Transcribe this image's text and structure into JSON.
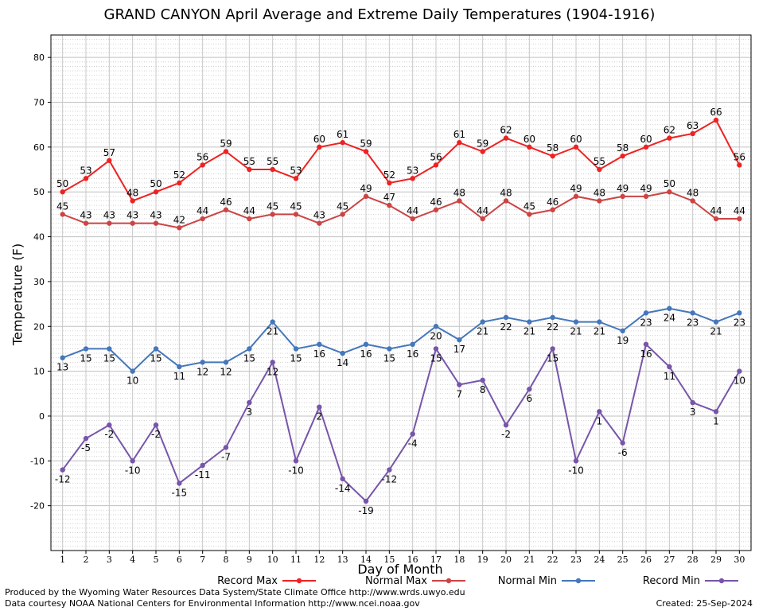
{
  "chart_data": {
    "type": "line",
    "title": "GRAND CANYON April Average and Extreme Daily Temperatures (1904-1916)",
    "xlabel": "Day of Month",
    "ylabel": "Temperature (F)",
    "ylim": [
      -30,
      85
    ],
    "yticks": [
      -20,
      -10,
      0,
      10,
      20,
      30,
      40,
      50,
      60,
      70,
      80
    ],
    "x": [
      1,
      2,
      3,
      4,
      5,
      6,
      7,
      8,
      9,
      10,
      11,
      12,
      13,
      14,
      15,
      16,
      17,
      18,
      19,
      20,
      21,
      22,
      23,
      24,
      25,
      26,
      27,
      28,
      29,
      30
    ],
    "grid": true,
    "legend_position": "bottom",
    "series": [
      {
        "name": "Record Max",
        "color": "#ee2222",
        "values": [
          50,
          53,
          57,
          48,
          50,
          52,
          56,
          59,
          55,
          55,
          53,
          60,
          61,
          59,
          52,
          53,
          56,
          61,
          59,
          62,
          60,
          58,
          60,
          55,
          58,
          60,
          62,
          63,
          66,
          56
        ]
      },
      {
        "name": "Normal Max",
        "color": "#cc4444",
        "values": [
          45,
          43,
          43,
          43,
          43,
          42,
          44,
          46,
          44,
          45,
          45,
          43,
          45,
          49,
          47,
          44,
          46,
          48,
          44,
          48,
          45,
          46,
          49,
          48,
          49,
          49,
          50,
          48,
          44,
          44
        ]
      },
      {
        "name": "Normal Min",
        "color": "#4477bb",
        "values": [
          13,
          15,
          15,
          10,
          15,
          11,
          12,
          12,
          15,
          21,
          15,
          16,
          14,
          16,
          15,
          16,
          20,
          17,
          21,
          22,
          21,
          22,
          21,
          21,
          19,
          23,
          24,
          23,
          21,
          23
        ]
      },
      {
        "name": "Record Min",
        "color": "#7755aa",
        "values": [
          -12,
          -5,
          -2,
          -10,
          -2,
          -15,
          -11,
          -7,
          3,
          12,
          -10,
          2,
          -14,
          -19,
          -12,
          -4,
          15,
          7,
          8,
          -2,
          6,
          15,
          -10,
          1,
          -6,
          16,
          11,
          3,
          1,
          10
        ]
      }
    ]
  },
  "footer": {
    "produced": "Produced by the Wyoming Water Resources Data System/State Climate Office http://www.wrds.uwyo.edu",
    "courtesy": "Data courtesy NOAA National Centers for Environmental Information http://www.ncei.noaa.gov",
    "created": "Created:  25-Sep-2024"
  }
}
